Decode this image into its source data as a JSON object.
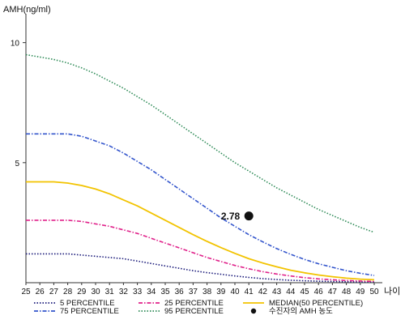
{
  "chart_data": {
    "type": "line",
    "ylabel": "AMH(ng/ml)",
    "xlabel": "나이",
    "xlim": [
      25,
      50
    ],
    "ylim": [
      0,
      11
    ],
    "x_ticks": [
      25,
      26,
      27,
      28,
      29,
      30,
      31,
      32,
      33,
      34,
      35,
      36,
      37,
      38,
      39,
      40,
      41,
      42,
      43,
      44,
      45,
      46,
      47,
      48,
      49,
      50
    ],
    "y_ticks": [
      5,
      10
    ],
    "x": [
      25,
      26,
      27,
      28,
      29,
      30,
      31,
      32,
      33,
      34,
      35,
      36,
      37,
      38,
      39,
      40,
      41,
      42,
      43,
      44,
      45,
      46,
      47,
      48,
      49,
      50
    ],
    "series": [
      {
        "name": "5 PERCENTILE",
        "color": "#1a1a7a",
        "dash": "dotted",
        "values": [
          1.2,
          1.2,
          1.2,
          1.2,
          1.15,
          1.1,
          1.05,
          1.0,
          0.9,
          0.8,
          0.7,
          0.6,
          0.5,
          0.42,
          0.35,
          0.28,
          0.22,
          0.17,
          0.13,
          0.1,
          0.08,
          0.06,
          0.05,
          0.04,
          0.03,
          0.03
        ]
      },
      {
        "name": "25 PERCENTILE",
        "color": "#e0218a",
        "dash": "dashdot",
        "values": [
          2.6,
          2.6,
          2.6,
          2.6,
          2.55,
          2.45,
          2.35,
          2.2,
          2.05,
          1.85,
          1.65,
          1.45,
          1.25,
          1.05,
          0.88,
          0.72,
          0.58,
          0.46,
          0.36,
          0.28,
          0.21,
          0.16,
          0.12,
          0.09,
          0.07,
          0.05
        ]
      },
      {
        "name": "MEDIAN(50 PERCENTILE)",
        "color": "#f2c300",
        "dash": "solid",
        "values": [
          4.2,
          4.2,
          4.2,
          4.15,
          4.05,
          3.9,
          3.7,
          3.45,
          3.2,
          2.9,
          2.6,
          2.3,
          2.0,
          1.72,
          1.46,
          1.22,
          1.0,
          0.82,
          0.66,
          0.52,
          0.41,
          0.32,
          0.25,
          0.19,
          0.15,
          0.12
        ]
      },
      {
        "name": "75 PERCENTILE",
        "color": "#3355cc",
        "dash": "dashdot",
        "values": [
          6.2,
          6.2,
          6.2,
          6.2,
          6.1,
          5.9,
          5.7,
          5.4,
          5.05,
          4.7,
          4.3,
          3.9,
          3.5,
          3.1,
          2.7,
          2.35,
          2.0,
          1.7,
          1.42,
          1.18,
          0.97,
          0.79,
          0.64,
          0.5,
          0.39,
          0.3
        ]
      },
      {
        "name": "95 PERCENTILE",
        "color": "#2e8b57",
        "dash": "dotted",
        "values": [
          9.5,
          9.4,
          9.3,
          9.15,
          8.95,
          8.7,
          8.4,
          8.1,
          7.75,
          7.4,
          7.0,
          6.6,
          6.2,
          5.8,
          5.4,
          5.0,
          4.65,
          4.3,
          3.95,
          3.65,
          3.35,
          3.05,
          2.8,
          2.55,
          2.3,
          2.1
        ]
      }
    ],
    "annotations": [
      {
        "label": "2.78",
        "x": 41,
        "y": 2.78,
        "legend": "수진자의 AMH 농도"
      }
    ],
    "grid": false,
    "legend_position": "bottom"
  }
}
